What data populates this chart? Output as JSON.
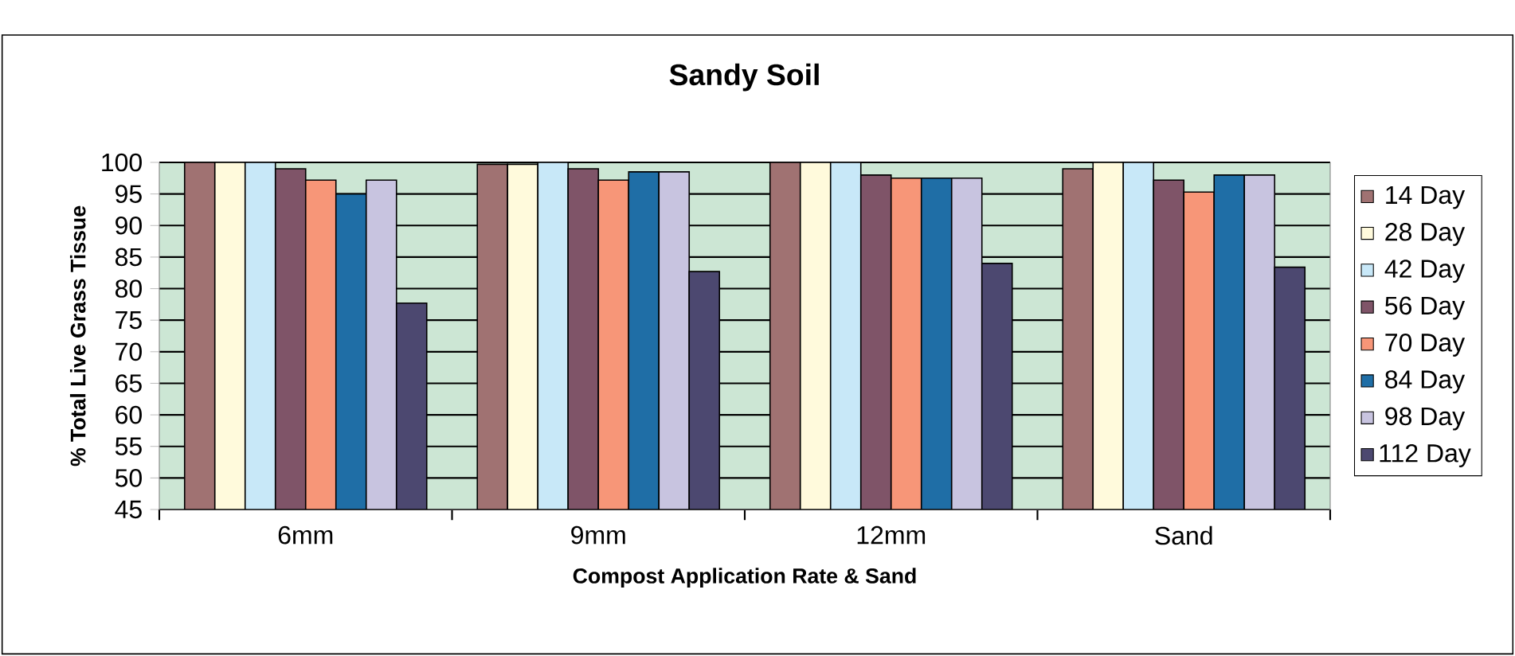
{
  "chart_data": {
    "type": "bar",
    "title": "Sandy Soil",
    "xlabel": "Compost Application Rate & Sand",
    "ylabel": "% Total Live Grass Tissue",
    "categories": [
      "6mm",
      "9mm",
      "12mm",
      "Sand"
    ],
    "series": [
      {
        "name": "14 Day",
        "color": "#a07272",
        "values": [
          100,
          99.7,
          100,
          99
        ]
      },
      {
        "name": "28 Day",
        "color": "#fffadc",
        "values": [
          100,
          99.7,
          100,
          100
        ]
      },
      {
        "name": "42 Day",
        "color": "#c8e8f8",
        "values": [
          100,
          100,
          100,
          100
        ]
      },
      {
        "name": "56 Day",
        "color": "#7f5468",
        "values": [
          99,
          99,
          98,
          97.2
        ]
      },
      {
        "name": "70 Day",
        "color": "#f79678",
        "values": [
          97.2,
          97.2,
          97.5,
          95.3
        ]
      },
      {
        "name": "84 Day",
        "color": "#1f6ea6",
        "values": [
          95,
          98.5,
          97.5,
          98
        ]
      },
      {
        "name": "98 Day",
        "color": "#c8c4e0",
        "values": [
          97.2,
          98.5,
          97.5,
          98
        ]
      },
      {
        "name": "112 Day",
        "color": "#4c4870",
        "values": [
          77.7,
          82.7,
          84,
          83.4
        ]
      }
    ],
    "ylim": [
      45,
      100
    ],
    "yticks": [
      45,
      50,
      55,
      60,
      65,
      70,
      75,
      80,
      85,
      90,
      95,
      100
    ],
    "grid": "y",
    "legend": "right"
  }
}
